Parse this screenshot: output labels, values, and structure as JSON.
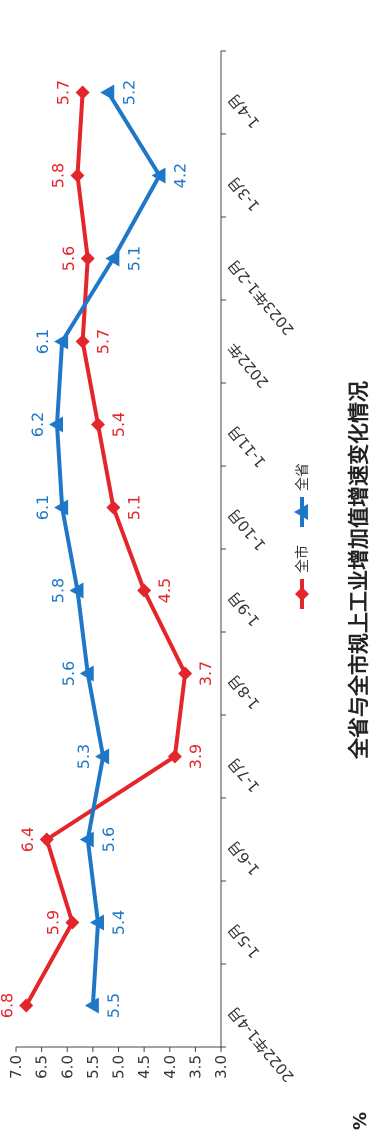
{
  "chart_data": {
    "type": "line",
    "title": "全省与全市规上工业增加值增速变化情况",
    "unit": "%",
    "categories": [
      "2022年1-4月",
      "1-5月",
      "1-6月",
      "1-7月",
      "1-8月",
      "1-9月",
      "1-10月",
      "1-11月",
      "2022年",
      "2023年1-2月",
      "1-3月",
      "1-4月"
    ],
    "series": [
      {
        "name": "全市",
        "color": "#e3262b",
        "marker": "diamond",
        "values": [
          6.8,
          5.9,
          6.4,
          3.9,
          3.7,
          4.5,
          5.1,
          5.4,
          5.7,
          5.6,
          5.8,
          5.7
        ]
      },
      {
        "name": "全省",
        "color": "#1f77c8",
        "marker": "triangle",
        "values": [
          5.5,
          5.4,
          5.6,
          5.3,
          5.6,
          5.8,
          6.1,
          6.2,
          6.1,
          5.1,
          4.2,
          5.2
        ]
      }
    ],
    "ylim": [
      3.0,
      7.0
    ],
    "yticks": [
      "3.0",
      "3.5",
      "4.0",
      "4.5",
      "5.0",
      "5.5",
      "6.0",
      "6.5",
      "7.0"
    ],
    "ystep": 0.5,
    "legend_position": "bottom",
    "grid": false
  }
}
